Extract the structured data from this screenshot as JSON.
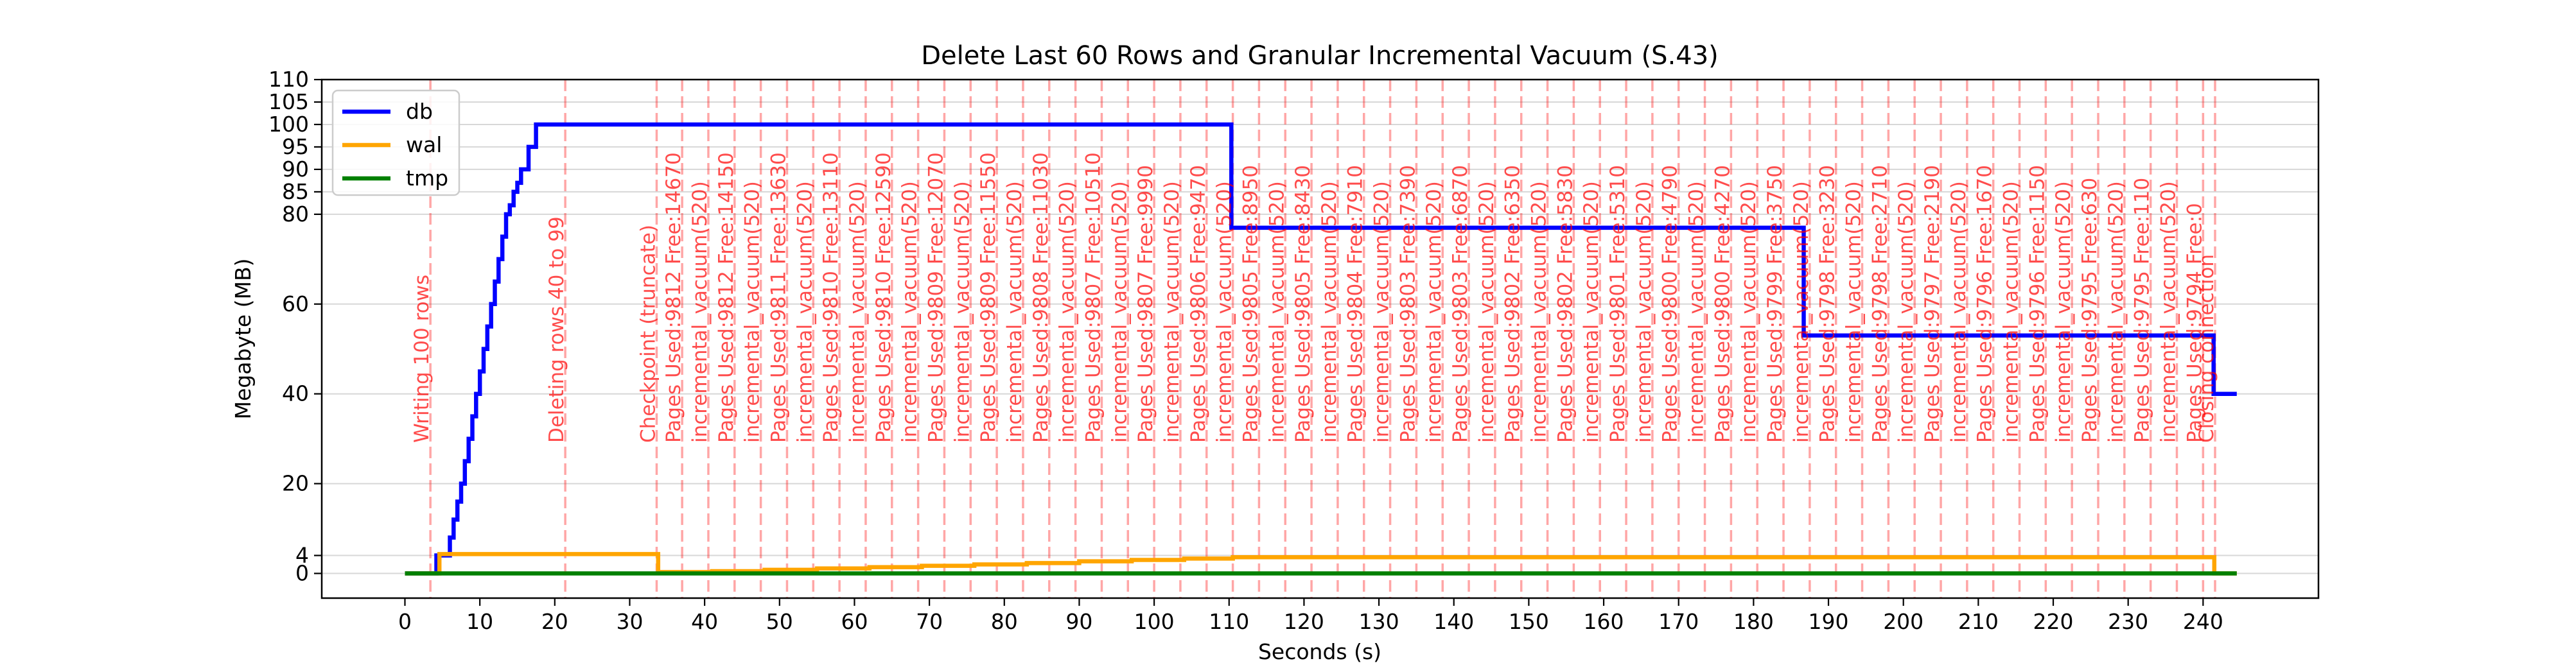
{
  "chart_data": {
    "type": "line",
    "title": "Delete Last 60 Rows and Granular Incremental Vacuum (S.43)",
    "xlabel": "Seconds (s)",
    "ylabel": "Megabyte (MB)",
    "xlim": [
      -11.1,
      255.4
    ],
    "ylim": [
      -5.5,
      110
    ],
    "xticks": [
      0,
      10,
      20,
      30,
      40,
      50,
      60,
      70,
      80,
      90,
      100,
      110,
      120,
      130,
      140,
      150,
      160,
      170,
      180,
      190,
      200,
      210,
      220,
      230,
      240
    ],
    "yticks": [
      0,
      4,
      20,
      40,
      60,
      80,
      85,
      90,
      95,
      100,
      105,
      110
    ],
    "grid": "horizontal",
    "legend_position": "upper-left",
    "series": [
      {
        "name": "db",
        "color": "#0000ff",
        "x": [
          0,
          3.5,
          4.2,
          5,
          6,
          6.5,
          7,
          7.5,
          8,
          8.5,
          9,
          9.5,
          10,
          10.5,
          11,
          11.5,
          12,
          12.5,
          13,
          13.5,
          14,
          14.5,
          15,
          15.5,
          16,
          16.5,
          17,
          17.5,
          18.4,
          110.2,
          110.3,
          186.6,
          186.7,
          241.3,
          241.4,
          244.5
        ],
        "y": [
          0,
          0,
          4,
          4,
          8,
          12,
          16,
          20,
          25,
          30,
          35,
          40,
          45,
          50,
          55,
          60,
          65,
          70,
          75,
          80,
          82,
          85,
          87,
          90,
          90,
          95,
          95,
          100,
          100,
          100,
          77,
          77,
          53,
          53,
          40,
          40
        ]
      },
      {
        "name": "wal",
        "color": "#ffa500",
        "x": [
          0,
          3.6,
          4.6,
          33.3,
          33.8,
          41,
          48,
          55,
          62,
          69,
          76,
          83,
          90,
          97,
          104,
          110.5,
          241,
          241.5,
          244.5
        ],
        "y": [
          0,
          0,
          4.3,
          4.3,
          0.3,
          0.5,
          0.8,
          1.1,
          1.4,
          1.7,
          2.0,
          2.3,
          2.7,
          3.0,
          3.3,
          3.6,
          3.6,
          0,
          0
        ]
      },
      {
        "name": "tmp",
        "color": "#008000",
        "x": [
          0,
          244.5
        ],
        "y": [
          0,
          0
        ]
      }
    ],
    "annotations": [
      {
        "x": 3.4,
        "label": "Writing 100 rows"
      },
      {
        "x": 21.4,
        "label": "Deleting rows 40 to 99"
      },
      {
        "x": 33.6,
        "label": "Checkpoint (truncate)"
      },
      {
        "x": 37.0,
        "label": "Pages Used:9812 Free:14670"
      },
      {
        "x": 40.5,
        "label": "incremental_vacuum(520)"
      },
      {
        "x": 44.0,
        "label": "Pages Used:9812 Free:14150"
      },
      {
        "x": 47.5,
        "label": "incremental_vacuum(520)"
      },
      {
        "x": 51.0,
        "label": "Pages Used:9811 Free:13630"
      },
      {
        "x": 54.5,
        "label": "incremental_vacuum(520)"
      },
      {
        "x": 58.0,
        "label": "Pages Used:9810 Free:13110"
      },
      {
        "x": 61.5,
        "label": "incremental_vacuum(520)"
      },
      {
        "x": 65.0,
        "label": "Pages Used:9810 Free:12590"
      },
      {
        "x": 68.5,
        "label": "incremental_vacuum(520)"
      },
      {
        "x": 72.0,
        "label": "Pages Used:9809 Free:12070"
      },
      {
        "x": 75.5,
        "label": "incremental_vacuum(520)"
      },
      {
        "x": 79.0,
        "label": "Pages Used:9809 Free:11550"
      },
      {
        "x": 82.5,
        "label": "incremental_vacuum(520)"
      },
      {
        "x": 86.0,
        "label": "Pages Used:9808 Free:11030"
      },
      {
        "x": 89.5,
        "label": "incremental_vacuum(520)"
      },
      {
        "x": 93.0,
        "label": "Pages Used:9807 Free:10510"
      },
      {
        "x": 96.5,
        "label": "incremental_vacuum(520)"
      },
      {
        "x": 100.0,
        "label": "Pages Used:9807 Free:9990"
      },
      {
        "x": 103.5,
        "label": "incremental_vacuum(520)"
      },
      {
        "x": 107.0,
        "label": "Pages Used:9806 Free:9470"
      },
      {
        "x": 110.5,
        "label": "incremental_vacuum(520)"
      },
      {
        "x": 114.0,
        "label": "Pages Used:9805 Free:8950"
      },
      {
        "x": 117.5,
        "label": "incremental_vacuum(520)"
      },
      {
        "x": 121.0,
        "label": "Pages Used:9805 Free:8430"
      },
      {
        "x": 124.5,
        "label": "incremental_vacuum(520)"
      },
      {
        "x": 128.0,
        "label": "Pages Used:9804 Free:7910"
      },
      {
        "x": 131.5,
        "label": "incremental_vacuum(520)"
      },
      {
        "x": 135.0,
        "label": "Pages Used:9803 Free:7390"
      },
      {
        "x": 138.5,
        "label": "incremental_vacuum(520)"
      },
      {
        "x": 142.0,
        "label": "Pages Used:9803 Free:6870"
      },
      {
        "x": 145.5,
        "label": "incremental_vacuum(520)"
      },
      {
        "x": 149.0,
        "label": "Pages Used:9802 Free:6350"
      },
      {
        "x": 152.5,
        "label": "incremental_vacuum(520)"
      },
      {
        "x": 156.0,
        "label": "Pages Used:9802 Free:5830"
      },
      {
        "x": 159.5,
        "label": "incremental_vacuum(520)"
      },
      {
        "x": 163.0,
        "label": "Pages Used:9801 Free:5310"
      },
      {
        "x": 166.5,
        "label": "incremental_vacuum(520)"
      },
      {
        "x": 170.0,
        "label": "Pages Used:9800 Free:4790"
      },
      {
        "x": 173.5,
        "label": "incremental_vacuum(520)"
      },
      {
        "x": 177.0,
        "label": "Pages Used:9800 Free:4270"
      },
      {
        "x": 180.5,
        "label": "incremental_vacuum(520)"
      },
      {
        "x": 184.0,
        "label": "Pages Used:9799 Free:3750"
      },
      {
        "x": 187.5,
        "label": "incremental_vacuum(520)"
      },
      {
        "x": 191.0,
        "label": "Pages Used:9798 Free:3230"
      },
      {
        "x": 194.5,
        "label": "incremental_vacuum(520)"
      },
      {
        "x": 198.0,
        "label": "Pages Used:9798 Free:2710"
      },
      {
        "x": 201.5,
        "label": "incremental_vacuum(520)"
      },
      {
        "x": 205.0,
        "label": "Pages Used:9797 Free:2190"
      },
      {
        "x": 208.5,
        "label": "incremental_vacuum(520)"
      },
      {
        "x": 212.0,
        "label": "Pages Used:9796 Free:1670"
      },
      {
        "x": 215.5,
        "label": "incremental_vacuum(520)"
      },
      {
        "x": 219.0,
        "label": "Pages Used:9796 Free:1150"
      },
      {
        "x": 222.5,
        "label": "incremental_vacuum(520)"
      },
      {
        "x": 226.0,
        "label": "Pages Used:9795 Free:630"
      },
      {
        "x": 229.5,
        "label": "incremental_vacuum(520)"
      },
      {
        "x": 233.0,
        "label": "Pages Used:9795 Free:110"
      },
      {
        "x": 236.5,
        "label": "incremental_vacuum(520)"
      },
      {
        "x": 240.0,
        "label": "Pages Used:9794 Free:0"
      },
      {
        "x": 241.6,
        "label": "Closing connection"
      }
    ],
    "annotation_color": "#ff0000"
  }
}
